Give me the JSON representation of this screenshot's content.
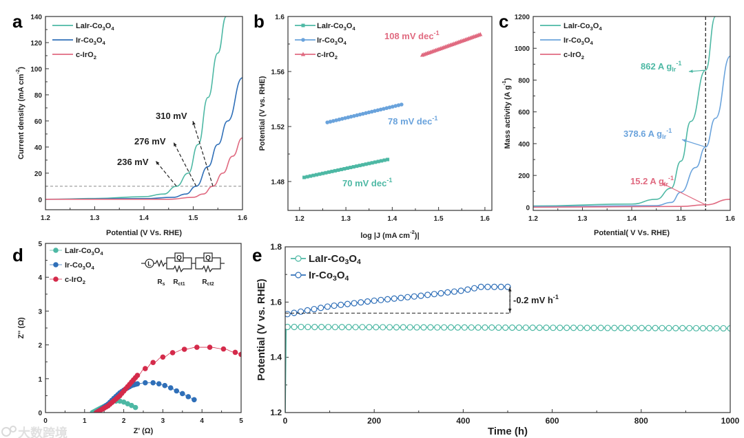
{
  "colors": {
    "laír": "#4db8a4",
    "ir": "#2f6fb8",
    "irb": "#6aa3dc",
    "iro2": "#e06a80",
    "iro2d": "#d42a4a",
    "axis": "#333333"
  },
  "watermark": "大数跨境",
  "chart_data": [
    {
      "panel": "a",
      "type": "line",
      "xlabel": "Potential (V Vs. RHE)",
      "ylabel": {
        "base": "Current density (mA cm",
        "sup": "-2",
        "tail": ")"
      },
      "xlim": [
        1.2,
        1.6
      ],
      "ylim": [
        -8,
        140
      ],
      "xticks": [
        1.2,
        1.3,
        1.4,
        1.5,
        1.6
      ],
      "yticks": [
        0,
        20,
        40,
        60,
        80,
        100,
        120,
        140
      ],
      "legend_position": "top-left",
      "reference_line_y": 10,
      "series": [
        {
          "name": "LaIr-Co3O4",
          "color_key": "laír",
          "points": [
            [
              1.2,
              0
            ],
            [
              1.3,
              0.6
            ],
            [
              1.4,
              2
            ],
            [
              1.44,
              4
            ],
            [
              1.466,
              10
            ],
            [
              1.49,
              20
            ],
            [
              1.51,
              42
            ],
            [
              1.53,
              78
            ],
            [
              1.55,
              112
            ],
            [
              1.567,
              140
            ]
          ]
        },
        {
          "name": "Ir-Co3O4",
          "color_key": "ir",
          "points": [
            [
              1.2,
              0
            ],
            [
              1.4,
              0.5
            ],
            [
              1.46,
              1.5
            ],
            [
              1.485,
              4
            ],
            [
              1.506,
              10
            ],
            [
              1.53,
              25
            ],
            [
              1.55,
              42
            ],
            [
              1.57,
              60
            ],
            [
              1.6,
              93
            ]
          ]
        },
        {
          "name": "c-IrO2",
          "color_key": "iro2",
          "points": [
            [
              1.2,
              0
            ],
            [
              1.45,
              0
            ],
            [
              1.5,
              1.5
            ],
            [
              1.52,
              4
            ],
            [
              1.54,
              10
            ],
            [
              1.56,
              20
            ],
            [
              1.58,
              33
            ],
            [
              1.6,
              47
            ]
          ]
        }
      ],
      "annotations": [
        "236 mV",
        "276 mV",
        "310 mV"
      ]
    },
    {
      "panel": "b",
      "type": "scatter",
      "xlabel": {
        "base": "log |J (mA cm",
        "sup": "-2",
        "tail": ")|"
      },
      "ylabel": "Potential (V vs. RHE)",
      "xlim": [
        1.175,
        1.615
      ],
      "ylim": [
        1.459,
        1.6
      ],
      "xticks": [
        1.2,
        1.3,
        1.4,
        1.5,
        1.6
      ],
      "yticks": [
        1.48,
        1.52,
        1.56,
        1.6
      ],
      "legend_position": "top-left",
      "series": [
        {
          "name": "LaIr-Co3O4",
          "color_key": "laír",
          "marker": "square",
          "start": [
            1.21,
            1.483
          ],
          "end": [
            1.39,
            1.496
          ],
          "count": 28,
          "tafel": {
            "base": "70 mV dec",
            "sup": "-1"
          }
        },
        {
          "name": "Ir-Co3O4",
          "color_key": "irb",
          "marker": "circle",
          "start": [
            1.26,
            1.523
          ],
          "end": [
            1.42,
            1.536
          ],
          "count": 26,
          "tafel": {
            "base": "78 mV dec",
            "sup": "-1"
          }
        },
        {
          "name": "c-IrO2",
          "color_key": "iro2",
          "marker": "triangle",
          "start": [
            1.465,
            1.572
          ],
          "end": [
            1.59,
            1.587
          ],
          "count": 36,
          "tafel": {
            "base": "108 mV dec",
            "sup": "-1"
          }
        }
      ]
    },
    {
      "panel": "c",
      "type": "line",
      "xlabel": "Potential( V Vs. RHE)",
      "ylabel": {
        "base": "Mass activity (A g",
        "sup": "-1",
        "tail": ")"
      },
      "xlim": [
        1.2,
        1.6
      ],
      "ylim": [
        -20,
        1200
      ],
      "xticks": [
        1.2,
        1.3,
        1.4,
        1.5,
        1.6
      ],
      "yticks": [
        0,
        200,
        400,
        600,
        800,
        1000,
        1200
      ],
      "legend_position": "top-left",
      "reference_line_x": 1.55,
      "series": [
        {
          "name": "LaIr-Co3O4",
          "color_key": "laír",
          "points": [
            [
              1.2,
              8
            ],
            [
              1.4,
              20
            ],
            [
              1.45,
              50
            ],
            [
              1.48,
              120
            ],
            [
              1.5,
              290
            ],
            [
              1.52,
              540
            ],
            [
              1.55,
              862
            ],
            [
              1.57,
              1200
            ]
          ],
          "mass_activity": {
            "base": "862 A g",
            "sub": "Ir",
            "sup": "-1"
          }
        },
        {
          "name": "Ir-Co3O4",
          "color_key": "irb",
          "points": [
            [
              1.2,
              4
            ],
            [
              1.45,
              10
            ],
            [
              1.48,
              30
            ],
            [
              1.5,
              95
            ],
            [
              1.53,
              250
            ],
            [
              1.55,
              378.6
            ],
            [
              1.57,
              560
            ],
            [
              1.6,
              950
            ]
          ],
          "mass_activity": {
            "base": "378.6 A g",
            "sub": "Ir",
            "sup": "-1"
          }
        },
        {
          "name": "c-IrO2",
          "color_key": "iro2",
          "points": [
            [
              1.2,
              0
            ],
            [
              1.5,
              5
            ],
            [
              1.55,
              15.2
            ],
            [
              1.6,
              50
            ]
          ],
          "mass_activity": {
            "base": "15.2 A g",
            "sub": "Ir",
            "sup": "-1"
          }
        }
      ]
    },
    {
      "panel": "d",
      "type": "scatter",
      "xlabel": "Z' (Ω)",
      "ylabel": "Z'' (Ω)",
      "xlim": [
        0,
        5
      ],
      "ylim": [
        0,
        5
      ],
      "xticks": [
        0,
        1,
        2,
        3,
        4,
        5
      ],
      "yticks": [
        0,
        1,
        2,
        3,
        4,
        5
      ],
      "legend_position": "top-left",
      "circuit": {
        "inductor": "L",
        "cpe": "Q",
        "labels": [
          "Rs",
          "Rct1",
          "Rct2"
        ]
      },
      "series": [
        {
          "name": "LaIr-Co3O4",
          "color_key": "laír",
          "points": [
            [
              1.2,
              0
            ],
            [
              1.3,
              0.06
            ],
            [
              1.4,
              0.12
            ],
            [
              1.5,
              0.18
            ],
            [
              1.6,
              0.24
            ],
            [
              1.7,
              0.3
            ],
            [
              1.8,
              0.34
            ],
            [
              1.9,
              0.34
            ],
            [
              2.0,
              0.31
            ],
            [
              2.1,
              0.26
            ],
            [
              2.2,
              0.21
            ],
            [
              2.3,
              0.15
            ]
          ]
        },
        {
          "name": "Ir-Co3O4",
          "color_key": "ir",
          "points": [
            [
              1.3,
              0
            ],
            [
              1.45,
              0.12
            ],
            [
              1.6,
              0.25
            ],
            [
              1.75,
              0.42
            ],
            [
              1.9,
              0.58
            ],
            [
              2.05,
              0.7
            ],
            [
              2.2,
              0.8
            ],
            [
              2.35,
              0.85
            ],
            [
              2.55,
              0.88
            ],
            [
              2.75,
              0.88
            ],
            [
              2.9,
              0.85
            ],
            [
              3.05,
              0.8
            ],
            [
              3.2,
              0.73
            ],
            [
              3.35,
              0.64
            ],
            [
              3.5,
              0.56
            ],
            [
              3.65,
              0.47
            ],
            [
              3.8,
              0.38
            ]
          ]
        },
        {
          "name": "c-IrO2",
          "color_key": "iro2d",
          "points": [
            [
              1.3,
              0
            ],
            [
              1.45,
              0.1
            ],
            [
              1.6,
              0.2
            ],
            [
              1.75,
              0.35
            ],
            [
              1.9,
              0.5
            ],
            [
              2.05,
              0.7
            ],
            [
              2.2,
              0.9
            ],
            [
              2.35,
              1.1
            ],
            [
              2.55,
              1.3
            ],
            [
              2.75,
              1.48
            ],
            [
              3.0,
              1.64
            ],
            [
              3.25,
              1.77
            ],
            [
              3.55,
              1.87
            ],
            [
              3.87,
              1.93
            ],
            [
              4.2,
              1.93
            ],
            [
              4.55,
              1.88
            ],
            [
              4.85,
              1.78
            ],
            [
              5.0,
              1.72
            ]
          ]
        }
      ]
    },
    {
      "panel": "e",
      "type": "line",
      "xlabel": "Time (h)",
      "ylabel": "Potential (V vs. RHE)",
      "xlim": [
        0,
        1000
      ],
      "ylim": [
        1.2,
        1.8
      ],
      "xticks": [
        0,
        200,
        400,
        600,
        800,
        1000
      ],
      "yticks": [
        1.2,
        1.4,
        1.6,
        1.8
      ],
      "legend_position": "top-left",
      "annotation": {
        "base": "-0.2 mV h",
        "sup": "-1"
      },
      "series": [
        {
          "name": "LaIr-Co3O4",
          "color_key": "laír",
          "marker": "open-circle",
          "points": [
            [
              0,
              1.2
            ],
            [
              2,
              1.5
            ],
            [
              5,
              1.51
            ],
            [
              1000,
              1.505
            ]
          ],
          "marker_range": [
            5,
            1000
          ],
          "marker_count": 66
        },
        {
          "name": "Ir-Co3O4",
          "color_key": "ir",
          "marker": "open-circle",
          "points": [
            [
              0,
              1.555
            ],
            [
              100,
              1.585
            ],
            [
              200,
              1.605
            ],
            [
              300,
              1.622
            ],
            [
              400,
              1.642
            ],
            [
              440,
              1.655
            ],
            [
              500,
              1.655
            ]
          ],
          "marker_range": [
            5,
            500
          ],
          "marker_count": 34
        }
      ]
    }
  ]
}
